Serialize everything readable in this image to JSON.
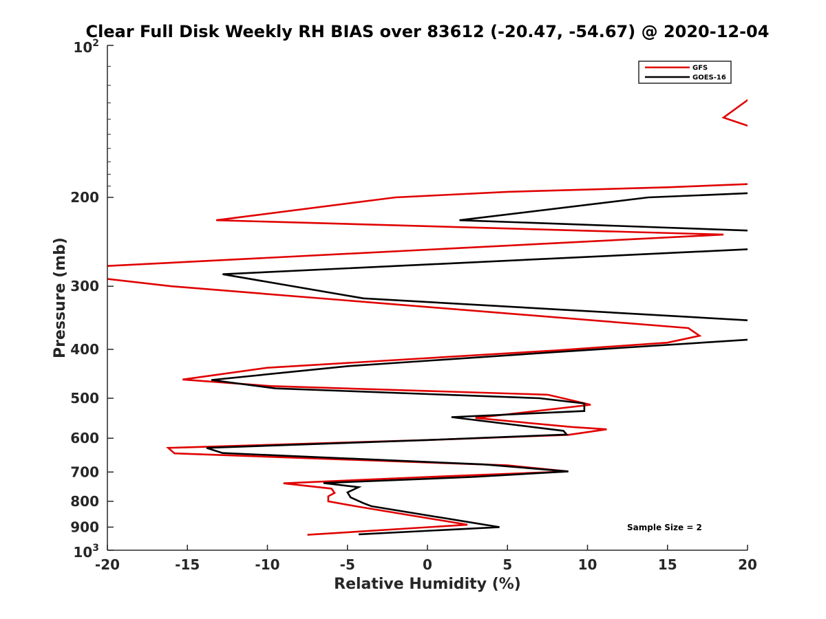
{
  "chart_data": {
    "type": "line",
    "title": "Clear Full Disk Weekly RH BIAS over 83612 (-20.47, -54.67) @ 2020-12-04",
    "xlabel": "Relative Humidity (%)",
    "ylabel": "Pressure (mb)",
    "xlim": [
      -20,
      20
    ],
    "ylim": [
      100,
      1000
    ],
    "y_scale": "log",
    "y_reversed": true,
    "grid": false,
    "legend_position": "top-right",
    "x_ticks": [
      "-20",
      "-15",
      "-10",
      "-5",
      "0",
      "5",
      "10",
      "15",
      "20"
    ],
    "y_ticks": [
      "200",
      "300",
      "400",
      "500",
      "600",
      "700",
      "800",
      "900"
    ],
    "y_tick_values": [
      200,
      300,
      400,
      500,
      600,
      700,
      800,
      900
    ],
    "y_top_label": {
      "base": "10",
      "exp": "2"
    },
    "y_bottom_label": {
      "base": "10",
      "exp": "3"
    },
    "annotation": "Sample Size = 2",
    "series": [
      {
        "name": "GFS",
        "color": "#e00000",
        "points": [
          [
            20.5,
            125
          ],
          [
            18.5,
            139
          ],
          [
            20.5,
            146
          ],
          [
            20.5,
            188
          ],
          [
            15,
            191
          ],
          [
            5,
            195
          ],
          [
            -2,
            200
          ],
          [
            -13.2,
            222
          ],
          [
            18.5,
            237
          ],
          [
            -20.5,
            274
          ],
          [
            -20.5,
            289
          ],
          [
            -16,
            300
          ],
          [
            16.3,
            363
          ],
          [
            17,
            376
          ],
          [
            15,
            388
          ],
          [
            8,
            402
          ],
          [
            -10,
            435
          ],
          [
            -15.3,
            459
          ],
          [
            -9.8,
            473
          ],
          [
            7.5,
            492
          ],
          [
            8,
            496
          ],
          [
            10.2,
            515
          ],
          [
            3,
            547
          ],
          [
            9,
            570
          ],
          [
            11.2,
            576
          ],
          [
            8.8,
            591
          ],
          [
            0,
            605
          ],
          [
            -16.2,
            627
          ],
          [
            -15.8,
            643
          ],
          [
            5,
            679
          ],
          [
            8.8,
            698
          ],
          [
            0,
            716
          ],
          [
            -9,
            737
          ],
          [
            -6,
            755
          ],
          [
            -5.8,
            770
          ],
          [
            -6.2,
            782
          ],
          [
            -6.2,
            800
          ],
          [
            -4.5,
            818
          ],
          [
            2.5,
            890
          ],
          [
            -7.5,
            932
          ]
        ]
      },
      {
        "name": "GOES-16",
        "color": "#000000",
        "points": [
          [
            20.5,
            196
          ],
          [
            13.8,
            200
          ],
          [
            2,
            222
          ],
          [
            20.5,
            233
          ],
          [
            20.5,
            253
          ],
          [
            -12.8,
            284
          ],
          [
            -4,
            317
          ],
          [
            20.5,
            351
          ],
          [
            20.5,
            382
          ],
          [
            8,
            405
          ],
          [
            -5,
            432
          ],
          [
            -13.5,
            460
          ],
          [
            -9.5,
            478
          ],
          [
            7,
            500
          ],
          [
            9.8,
            512
          ],
          [
            9.8,
            530
          ],
          [
            1.5,
            545
          ],
          [
            8.5,
            580
          ],
          [
            8.7,
            590
          ],
          [
            0,
            605
          ],
          [
            -13.8,
            627
          ],
          [
            -12.8,
            642
          ],
          [
            3.5,
            676
          ],
          [
            8.8,
            698
          ],
          [
            2.8,
            716
          ],
          [
            -6.5,
            736
          ],
          [
            -4.3,
            750
          ],
          [
            -5,
            768
          ],
          [
            -4.8,
            786
          ],
          [
            -4,
            807
          ],
          [
            -3.5,
            818
          ],
          [
            4.5,
            900
          ],
          [
            -4.3,
            930
          ]
        ]
      }
    ]
  }
}
